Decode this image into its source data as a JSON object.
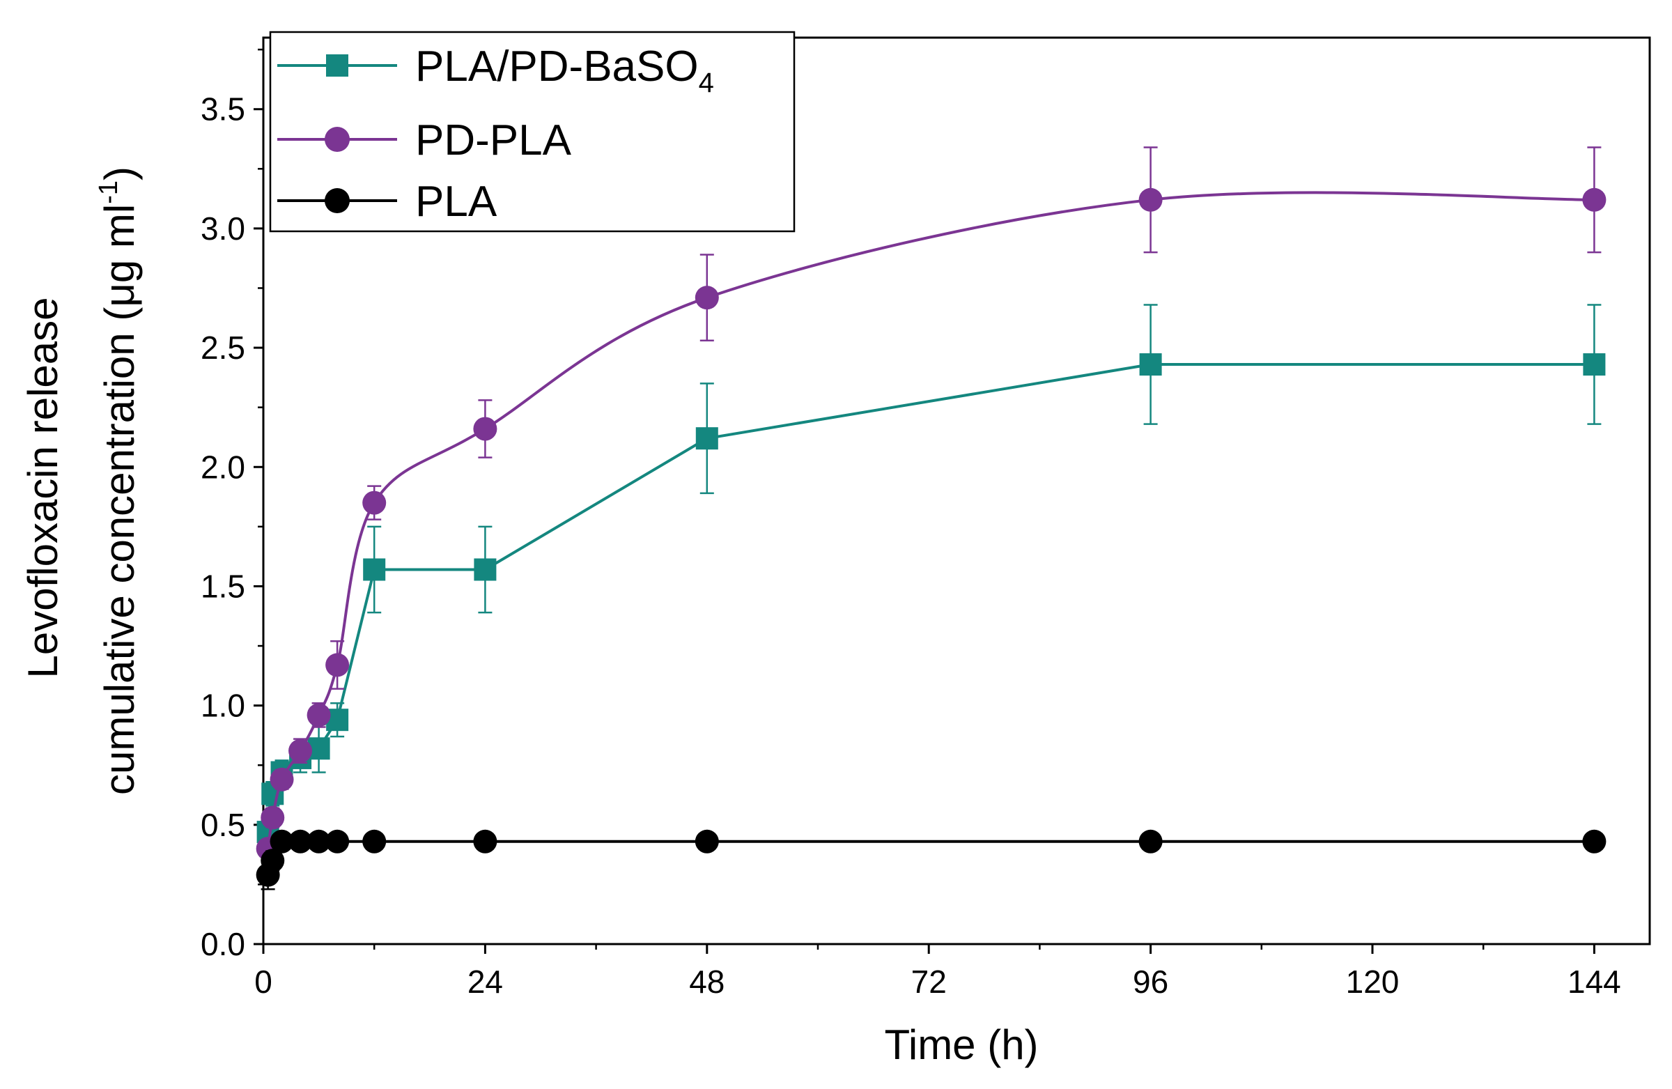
{
  "chart_data": {
    "type": "line",
    "xlabel": "Time (h)",
    "ylabel_line1": "Levofloxacin release",
    "ylabel_line2": "cumulative concentration (μg ml",
    "ylabel_sup": "-1",
    "ylabel_close": ")",
    "xlim": [
      0,
      150
    ],
    "ylim": [
      0,
      3.8
    ],
    "xticks": [
      0,
      24,
      48,
      72,
      96,
      120,
      144
    ],
    "yticks": [
      0.0,
      0.5,
      1.0,
      1.5,
      2.0,
      2.5,
      3.0,
      3.5
    ],
    "x_tick_labels": [
      "0",
      "24",
      "48",
      "72",
      "96",
      "120",
      "144"
    ],
    "y_tick_labels": [
      "0.0",
      "0.5",
      "1.0",
      "1.5",
      "2.0",
      "2.5",
      "3.0",
      "3.5"
    ],
    "series": [
      {
        "name": "PLA/PD-BaSO",
        "name_sub": "4",
        "color": "#14877f",
        "marker": "square",
        "curve": "linear",
        "x": [
          0.5,
          1,
          2,
          4,
          6,
          8,
          12,
          24,
          48,
          96,
          144
        ],
        "y": [
          0.47,
          0.63,
          0.72,
          0.78,
          0.82,
          0.94,
          1.57,
          1.57,
          2.12,
          2.43,
          2.43
        ],
        "err": [
          0.05,
          0.05,
          0.05,
          0.06,
          0.1,
          0.07,
          0.18,
          0.18,
          0.23,
          0.25,
          0.25
        ]
      },
      {
        "name": "PD-PLA",
        "color": "#7b3593",
        "marker": "circle",
        "curve": "smooth",
        "x": [
          0.5,
          1,
          2,
          4,
          6,
          8,
          12,
          24,
          48,
          96,
          144
        ],
        "y": [
          0.4,
          0.53,
          0.69,
          0.81,
          0.96,
          1.17,
          1.85,
          2.16,
          2.71,
          3.12,
          3.12
        ],
        "err": [
          0.03,
          0.04,
          0.04,
          0.05,
          0.05,
          0.1,
          0.07,
          0.12,
          0.18,
          0.22,
          0.22
        ]
      },
      {
        "name": "PLA",
        "color": "#000000",
        "marker": "circle",
        "curve": "smooth",
        "x": [
          0.5,
          1,
          2,
          4,
          6,
          8,
          12,
          24,
          48,
          96,
          144
        ],
        "y": [
          0.29,
          0.35,
          0.43,
          0.43,
          0.43,
          0.43,
          0.43,
          0.43,
          0.43,
          0.43,
          0.43
        ],
        "err": [
          0.06,
          0.04,
          0.03,
          0.03,
          0.03,
          0.03,
          0.03,
          0.03,
          0.03,
          0.03,
          0.03
        ]
      }
    ],
    "legend_position": "top-left"
  }
}
